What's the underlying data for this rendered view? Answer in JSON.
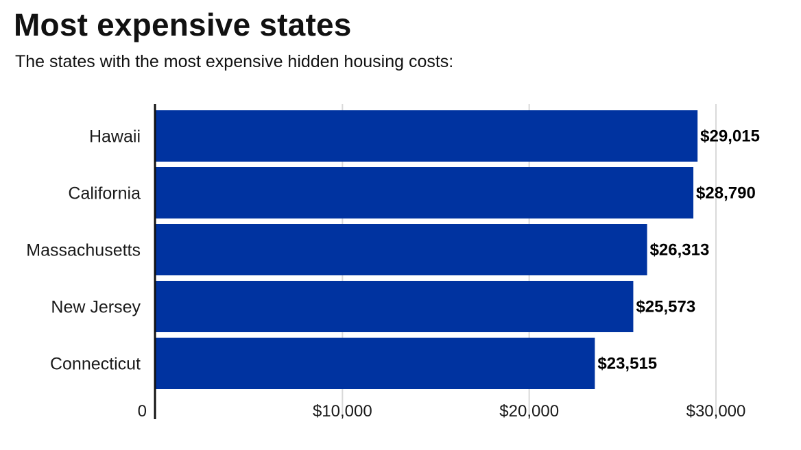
{
  "header": {
    "title": "Most expensive states",
    "subtitle": "The states with the most expensive hidden housing costs:"
  },
  "colors": {
    "bar": "#0033a0",
    "axis": "#111111",
    "grid": "#d9d9d9"
  },
  "chart_data": {
    "type": "bar",
    "orientation": "horizontal",
    "title": "Most expensive states",
    "subtitle": "The states with the most expensive hidden housing costs:",
    "categories": [
      "Hawaii",
      "California",
      "Massachusetts",
      "New Jersey",
      "Connecticut"
    ],
    "values": [
      29015,
      28790,
      26313,
      25573,
      23515
    ],
    "value_labels": [
      "$29,015",
      "$28,790",
      "$26,313",
      "$25,573",
      "$23,515"
    ],
    "xlim": [
      0,
      30000
    ],
    "x_ticks": [
      0,
      10000,
      20000,
      30000
    ],
    "x_tick_labels": [
      "0",
      "$10,000",
      "$20,000",
      "$30,000"
    ],
    "grid": true,
    "xlabel": "",
    "ylabel": ""
  }
}
